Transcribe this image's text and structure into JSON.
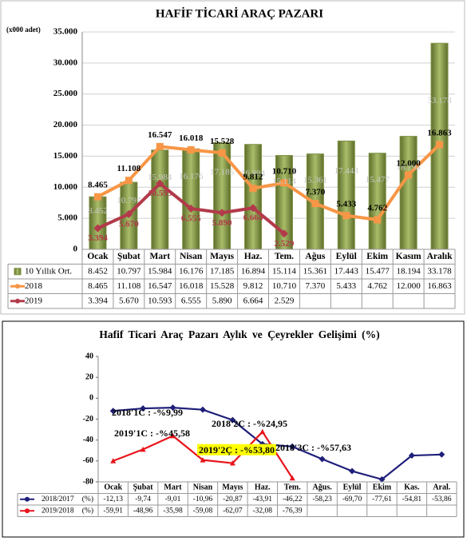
{
  "chart_data": [
    {
      "type": "bar",
      "title": "HAFİF TİCARİ ARAÇ PAZARI",
      "unit_label": "(x000 adet)",
      "categories": [
        "Ocak",
        "Şubat",
        "Mart",
        "Nisan",
        "Mayıs",
        "Haz.",
        "Tem.",
        "Ağus",
        "Eylül",
        "Ekim",
        "Kasım",
        "Aralık"
      ],
      "series": [
        {
          "name": "10 Yıllık Ort.",
          "type": "bar",
          "color": "#7f9245",
          "values": [
            8452,
            10797,
            15984,
            16176,
            17185,
            16894,
            15114,
            15361,
            17443,
            15477,
            18194,
            33178
          ],
          "value_labels": [
            "8.452",
            "10.797",
            "15.984",
            "16.176",
            "17.185",
            "16.894",
            "15.114",
            "15.361",
            "17.443",
            "15.477",
            "18.194",
            "33.178"
          ]
        },
        {
          "name": "2018",
          "type": "line",
          "color": "#f79646",
          "values": [
            8465,
            11108,
            16547,
            16018,
            15528,
            9812,
            10710,
            7370,
            5433,
            4762,
            12000,
            16863
          ],
          "value_labels": [
            "8.465",
            "11.108",
            "16.547",
            "16.018",
            "15.528",
            "9.812",
            "10.710",
            "7.370",
            "5.433",
            "4.762",
            "12.000",
            "16.863"
          ]
        },
        {
          "name": "2019",
          "type": "line",
          "color": "#b23a4a",
          "values": [
            3394,
            5670,
            10593,
            6555,
            5890,
            6664,
            2529,
            null,
            null,
            null,
            null,
            null
          ],
          "value_labels": [
            "3.394",
            "5.670",
            "10.593",
            "6.555",
            "5.890",
            "6.664",
            "2.529",
            null,
            null,
            null,
            null,
            null
          ]
        }
      ],
      "ylim": [
        0,
        35000
      ],
      "yticks": [
        0,
        {
          "value": 5000,
          "label": "5.000"
        },
        {
          "value": 10000,
          "label": "10.000"
        },
        {
          "value": 15000,
          "label": "15.000"
        },
        {
          "value": 20000,
          "label": "20.000"
        },
        {
          "value": 25000,
          "label": "25.000"
        },
        {
          "value": 30000,
          "label": "30.000"
        },
        {
          "value": 35000,
          "label": "35.000"
        }
      ],
      "grid": true,
      "data_labels": true,
      "data_table": true
    },
    {
      "type": "line",
      "title": "Hafif Ticari Araç Pazarı Aylık ve Çeyrekler Gelişimi (%)",
      "unit": "(%)",
      "categories": [
        "Ocak",
        "Şubat",
        "Mart",
        "Nisan",
        "Mayıs",
        "Haz.",
        "Tem.",
        "Ağus.",
        "Eylül",
        "Ekim",
        "Kas.",
        "Aral."
      ],
      "series": [
        {
          "name": "2018/2017",
          "color": "#1f1f7a",
          "values": [
            -12.13,
            -9.74,
            -9.01,
            -10.96,
            -20.87,
            -43.91,
            -46.22,
            -58.23,
            -69.7,
            -77.61,
            -54.81,
            -53.86
          ],
          "value_labels": [
            "-12,13",
            "-9,74",
            "-9,01",
            "-10,96",
            "-20,87",
            "-43,91",
            "-46,22",
            "-58,23",
            "-69,70",
            "-77,61",
            "-54,81",
            "-53,86"
          ]
        },
        {
          "name": "2019/2018",
          "color": "#e8141b",
          "values": [
            -59.91,
            -48.96,
            -35.98,
            -59.08,
            -62.07,
            -32.08,
            -76.39,
            null,
            null,
            null,
            null,
            null
          ],
          "value_labels": [
            "-59,91",
            "-48,96",
            "-35,98",
            "-59,08",
            "-62,07",
            "-32,08",
            "-76,39",
            null,
            null,
            null,
            null,
            null
          ]
        }
      ],
      "ylim": [
        -80,
        40
      ],
      "yticks": [
        40,
        20,
        0,
        -20,
        -40,
        -60,
        -80
      ],
      "grid": false,
      "data_labels": false,
      "data_table": true,
      "annotations": [
        {
          "text": "2018'1C : -%9,99"
        },
        {
          "text": "2019'1C : -%45,58"
        },
        {
          "text": "2018'2C : -%24,95"
        },
        {
          "text": "2019'2Ç : -%53,80",
          "highlight": "#ffff00"
        },
        {
          "text": "2018'3C : -%57,63"
        }
      ]
    }
  ]
}
